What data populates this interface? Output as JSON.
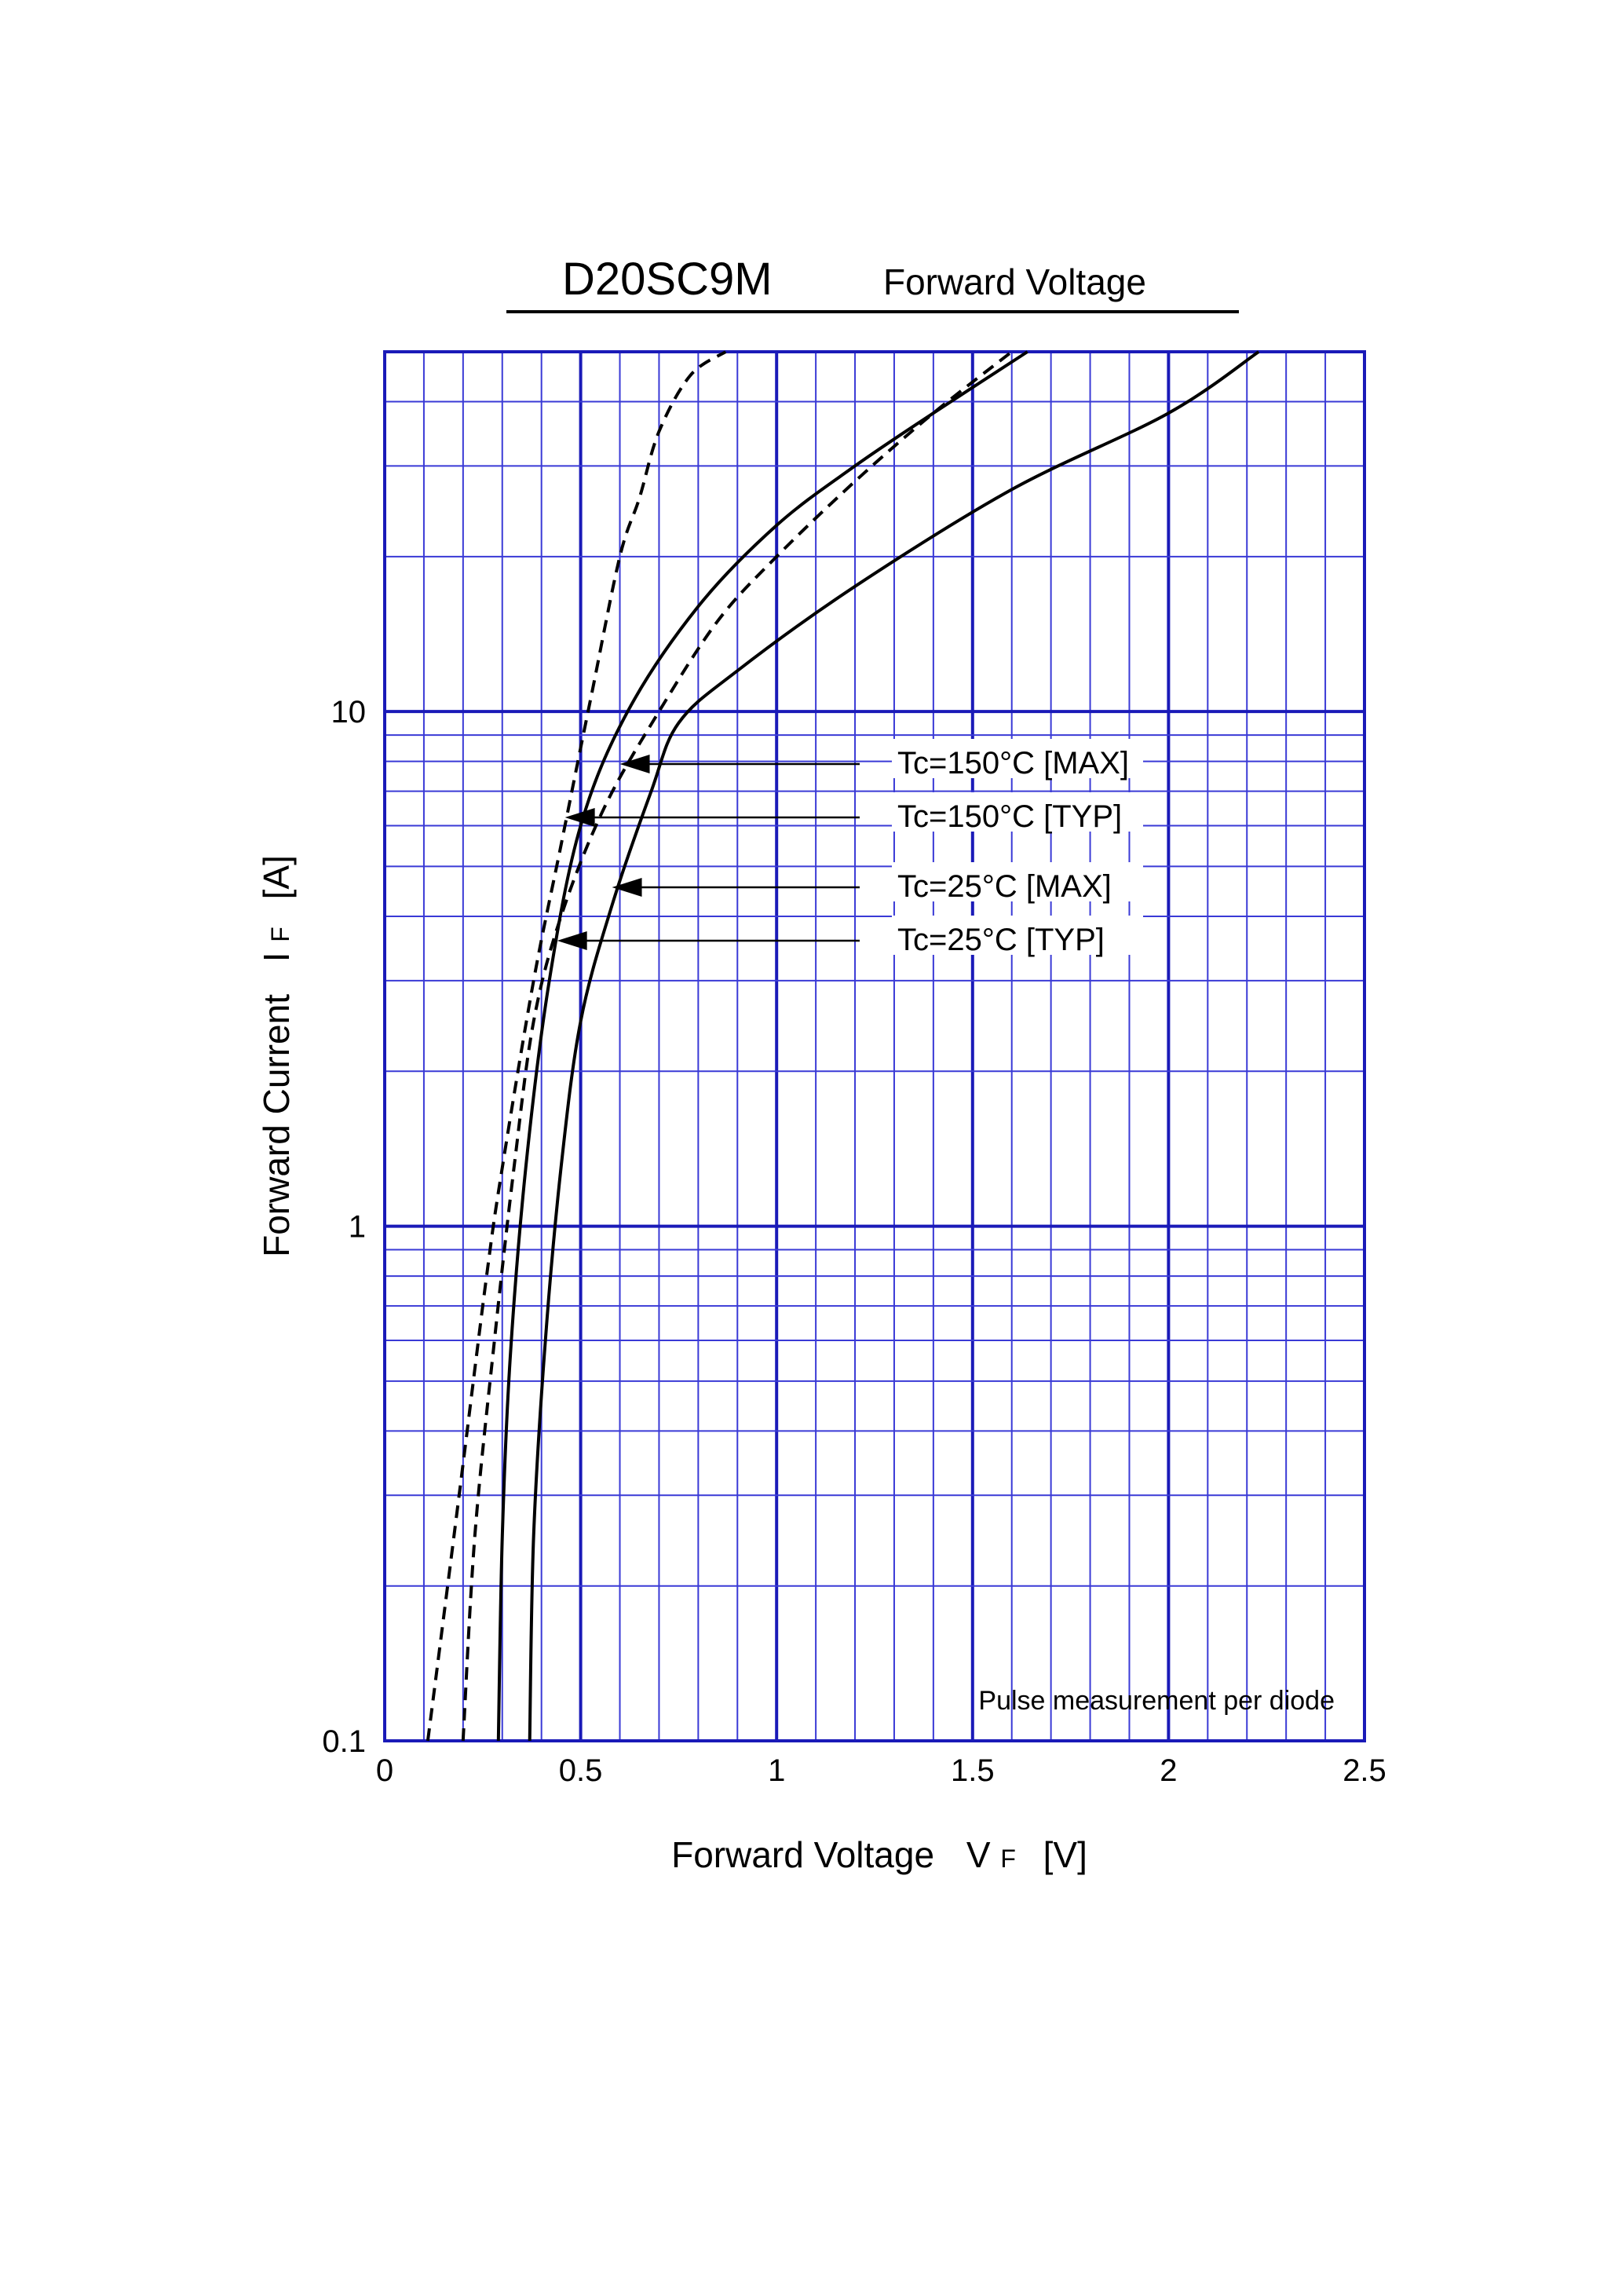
{
  "header": {
    "part_number": "D20SC9M",
    "chart_name": "Forward Voltage"
  },
  "axes": {
    "x_label_main": "Forward Voltage",
    "x_symbol": "V",
    "x_subscript": "F",
    "x_unit": "[V]",
    "y_label_main": "Forward Current",
    "y_symbol": "I",
    "y_subscript": "F",
    "y_unit": "[A]"
  },
  "note": "Pulse measurement per diode",
  "colors": {
    "grid": "#3a3ad6",
    "grid_major": "#1a1ab8",
    "curve": "#000000"
  },
  "chart_data": {
    "type": "line",
    "title": "D20SC9M Forward Voltage",
    "xlabel": "Forward Voltage VF [V]",
    "ylabel": "Forward Current IF [A]",
    "xlim": [
      0,
      2.5
    ],
    "ylim": [
      0.1,
      50
    ],
    "yscale": "log",
    "grid": true,
    "x_ticks": [
      {
        "value": 0,
        "label": "0"
      },
      {
        "value": 0.5,
        "label": "0.5"
      },
      {
        "value": 1,
        "label": "1"
      },
      {
        "value": 1.5,
        "label": "1.5"
      },
      {
        "value": 2,
        "label": "2"
      },
      {
        "value": 2.5,
        "label": "2.5"
      }
    ],
    "y_ticks": [
      {
        "value": 0.1,
        "label": "0.1"
      },
      {
        "value": 1,
        "label": "1"
      },
      {
        "value": 10,
        "label": "10"
      }
    ],
    "series": [
      {
        "name": "Tc=150°C [MAX]",
        "style": "dashed",
        "label_anchor": [
          0.6,
          7.5
        ],
        "points": [
          [
            0.11,
            0.1
          ],
          [
            0.19,
            0.3
          ],
          [
            0.26,
            0.8
          ],
          [
            0.3,
            1.3
          ],
          [
            0.38,
            3.0
          ],
          [
            0.45,
            5.5
          ],
          [
            0.5,
            8.5
          ],
          [
            0.53,
            11
          ],
          [
            0.6,
            20
          ],
          [
            0.65,
            26
          ],
          [
            0.7,
            35
          ],
          [
            0.78,
            45
          ],
          [
            0.87,
            50
          ]
        ]
      },
      {
        "name": "Tc=150°C [TYP]",
        "style": "solid",
        "label_anchor": [
          0.46,
          6.0
        ],
        "points": [
          [
            0.29,
            0.1
          ],
          [
            0.3,
            0.25
          ],
          [
            0.32,
            0.55
          ],
          [
            0.36,
            1.3
          ],
          [
            0.42,
            3.0
          ],
          [
            0.5,
            6.0
          ],
          [
            0.62,
            10
          ],
          [
            0.8,
            16
          ],
          [
            1.0,
            23
          ],
          [
            1.2,
            30
          ],
          [
            1.4,
            38
          ],
          [
            1.64,
            50
          ]
        ]
      },
      {
        "name": "Tc=25°C [MAX]",
        "style": "dashed",
        "label_anchor": [
          0.58,
          4.4
        ],
        "points": [
          [
            0.2,
            0.1
          ],
          [
            0.23,
            0.25
          ],
          [
            0.28,
            0.6
          ],
          [
            0.33,
            1.3
          ],
          [
            0.38,
            2.5
          ],
          [
            0.45,
            4.0
          ],
          [
            0.56,
            6.5
          ],
          [
            0.7,
            10
          ],
          [
            0.85,
            15
          ],
          [
            1.0,
            20
          ],
          [
            1.2,
            28
          ],
          [
            1.4,
            38
          ],
          [
            1.6,
            50
          ]
        ]
      },
      {
        "name": "Tc=25°C [TYP]",
        "style": "solid",
        "label_anchor": [
          0.44,
          3.4
        ],
        "points": [
          [
            0.37,
            0.1
          ],
          [
            0.38,
            0.25
          ],
          [
            0.41,
            0.6
          ],
          [
            0.45,
            1.3
          ],
          [
            0.5,
            2.5
          ],
          [
            0.58,
            4.2
          ],
          [
            0.68,
            7.0
          ],
          [
            0.75,
            9.5
          ],
          [
            0.9,
            12
          ],
          [
            1.2,
            17.5
          ],
          [
            1.6,
            27
          ],
          [
            2.0,
            38
          ],
          [
            2.23,
            50
          ]
        ]
      }
    ]
  }
}
